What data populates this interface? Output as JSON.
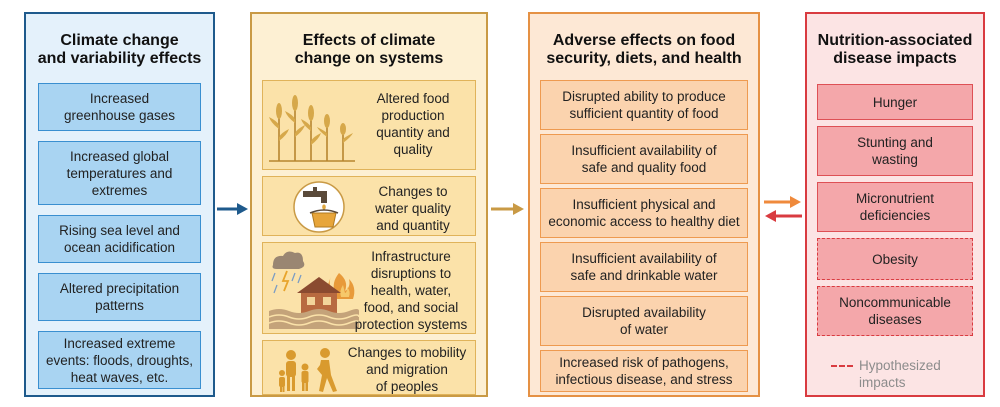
{
  "columns": {
    "climate": {
      "title": [
        "Climate change",
        "and variability effects"
      ],
      "items": [
        [
          "Increased",
          "greenhouse gases"
        ],
        [
          "Increased global",
          "temperatures and",
          "extremes"
        ],
        [
          "Rising sea level and",
          "ocean acidification"
        ],
        [
          "Altered precipitation",
          "patterns"
        ],
        [
          "Increased extreme",
          "events: floods, droughts,",
          "heat waves, etc."
        ]
      ]
    },
    "systems": {
      "title": [
        "Effects of climate",
        "change on systems"
      ],
      "items": [
        {
          "icon": "crops-icon",
          "lines": [
            "Altered food",
            "production",
            "quantity and",
            "quality"
          ]
        },
        {
          "icon": "water-tap-icon",
          "lines": [
            "Changes to",
            "water quality",
            "and quantity"
          ]
        },
        {
          "icon": "infrastructure-storm-icon",
          "lines": [
            "Infrastructure",
            "disruptions to",
            "health, water,",
            "food, and social",
            "protection systems"
          ]
        },
        {
          "icon": "migration-people-icon",
          "lines": [
            "Changes to mobility",
            "and migration",
            "of peoples"
          ]
        }
      ]
    },
    "food": {
      "title": [
        "Adverse effects on food",
        "security, diets, and health"
      ],
      "items": [
        [
          "Disrupted ability to produce",
          "sufficient quantity of food"
        ],
        [
          "Insufficient availability of",
          "safe and quality food"
        ],
        [
          "Insufficient physical and",
          "economic access to healthy diet"
        ],
        [
          "Insufficient availability of",
          "safe and drinkable water"
        ],
        [
          "Disrupted availability",
          "of water"
        ],
        [
          "Increased risk of pathogens,",
          "infectious disease, and stress"
        ]
      ]
    },
    "disease": {
      "title": [
        "Nutrition-associated",
        "disease impacts"
      ],
      "items": [
        [
          "Hunger"
        ],
        [
          "Stunting and",
          "wasting"
        ],
        [
          "Micronutrient",
          "deficiencies"
        ],
        [
          "Obesity"
        ],
        [
          "Noncommunicable",
          "diseases"
        ]
      ],
      "legend": [
        "Hypothesized",
        "impacts"
      ]
    }
  },
  "colors": {
    "climate_border": "#1e5a8c",
    "systems_border": "#c99a45",
    "food_border": "#e59144",
    "disease_border": "#d93b40",
    "arrow_blue": "#1e5a8c",
    "arrow_gold": "#c99a45",
    "arrow_orange": "#ef8a3c",
    "arrow_red": "#d93b40"
  }
}
